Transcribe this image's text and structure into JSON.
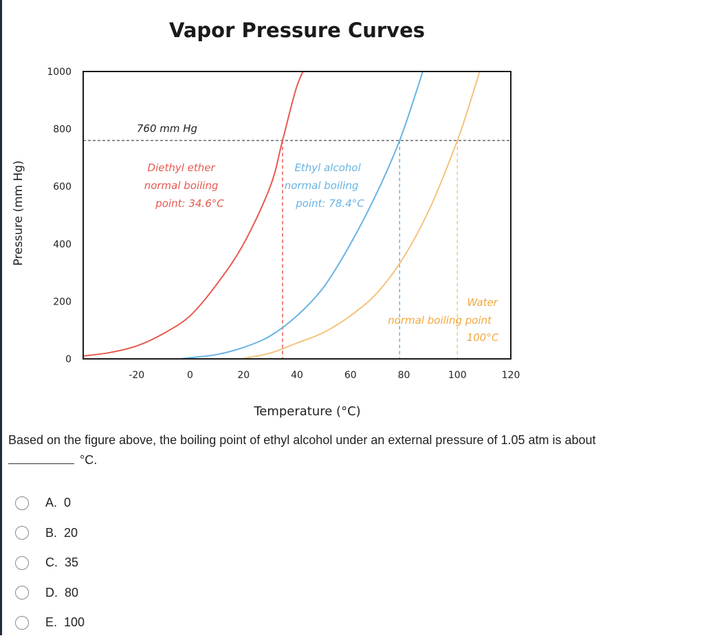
{
  "chart_data": {
    "type": "line",
    "title": "Vapor Pressure Curves",
    "xlabel": "Temperature (°C)",
    "ylabel": "Pressure (mm Hg)",
    "xlim": [
      -40,
      120
    ],
    "ylim": [
      0,
      1000
    ],
    "xticks": [
      -20,
      0,
      20,
      40,
      60,
      80,
      100,
      120
    ],
    "yticks": [
      0,
      200,
      400,
      600,
      800,
      1000
    ],
    "grid": false,
    "reference_line": {
      "y": 760,
      "label": "760 mm Hg"
    },
    "series": [
      {
        "color": "#e8584e",
        "boiling_point": 34.6,
        "annotation": [
          "Diethyl ether",
          "normal boiling",
          "point: 34.6°C"
        ],
        "x": [
          -40,
          -30,
          -20,
          -10,
          0,
          10,
          20,
          30,
          34.6,
          40,
          45,
          50
        ],
        "y": [
          10,
          22,
          45,
          88,
          150,
          260,
          400,
          600,
          760,
          950,
          1050,
          1160
        ]
      },
      {
        "color": "#68b3e3",
        "boiling_point": 78.4,
        "annotation": [
          "Ethyl alcohol",
          "normal boiling",
          "point: 78.4°C"
        ],
        "x": [
          -4,
          0,
          10,
          20,
          30,
          40,
          50,
          60,
          70,
          78.4,
          85,
          90
        ],
        "y": [
          0,
          4,
          15,
          40,
          80,
          150,
          250,
          400,
          580,
          760,
          940,
          1090
        ]
      },
      {
        "color": "#f5c27c",
        "boiling_point": 100,
        "annotation": [
          "Water",
          "normal boiling point",
          "100°C"
        ],
        "x": [
          20,
          30,
          40,
          50,
          60,
          70,
          80,
          90,
          100,
          105,
          110
        ],
        "y": [
          2,
          20,
          55,
          92,
          150,
          230,
          355,
          530,
          760,
          900,
          1050
        ]
      }
    ]
  },
  "question": {
    "text": "Based on the figure above, the boiling point of ethyl alcohol under an external pressure of 1.05 atm is about",
    "unit": "°C."
  },
  "choices": [
    {
      "label": "A.  0"
    },
    {
      "label": "B.  20"
    },
    {
      "label": "C.  35"
    },
    {
      "label": "D.  80"
    },
    {
      "label": "E.  100"
    }
  ]
}
